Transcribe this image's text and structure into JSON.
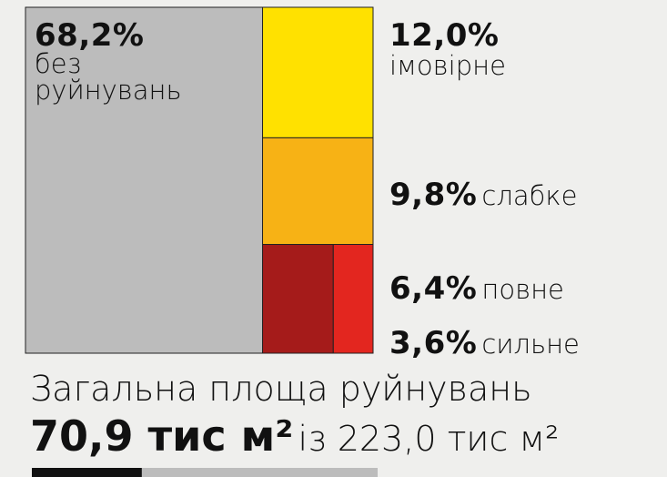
{
  "chart_data": {
    "type": "treemap",
    "categories": [
      "без руйнувань",
      "імовірне",
      "слабке",
      "повне",
      "сильне"
    ],
    "values": [
      68.2,
      12.0,
      9.8,
      6.4,
      3.6
    ],
    "value_labels": [
      "68,2%",
      "12,0%",
      "9,8%",
      "6,4%",
      "3,6%"
    ],
    "colors": [
      "#bcbcbc",
      "#ffe100",
      "#f7b215",
      "#a51b1a",
      "#e3261f"
    ]
  },
  "summary": {
    "title": "Загальна площа руйнувань",
    "damaged": 70.9,
    "damaged_label": "70,9 тис м²",
    "total": 223.0,
    "total_label": "із 223,0 тис м²"
  }
}
